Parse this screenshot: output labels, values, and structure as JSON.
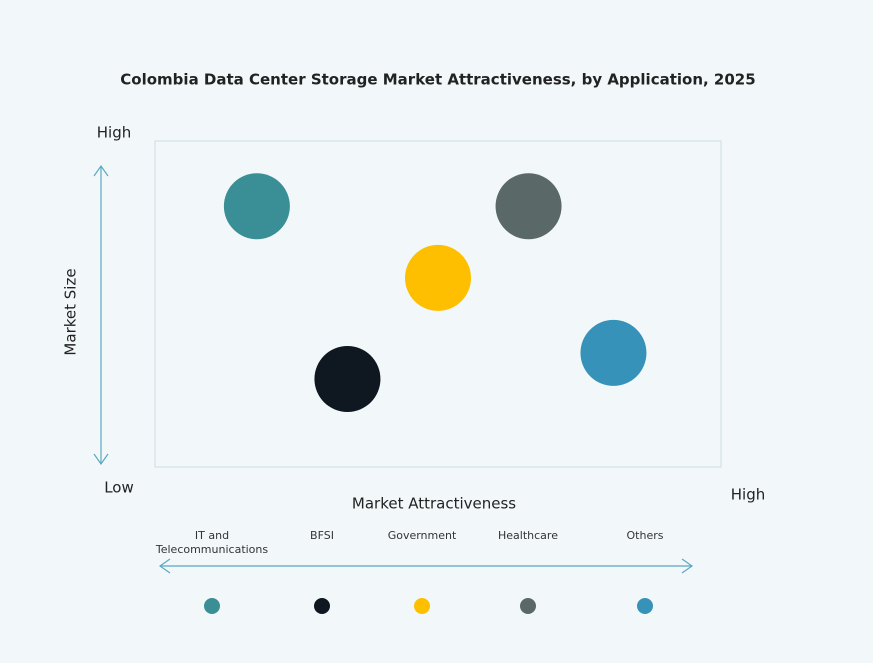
{
  "chart_data": {
    "type": "scatter",
    "title": "Colombia Data Center Storage Market Attractiveness,  by Application, 2025",
    "x_label": "Market Attractiveness",
    "y_label": "Market Size",
    "axis_labels": {
      "y_high": "High",
      "low": "Low",
      "x_high": "High"
    },
    "xlim": [
      0,
      100
    ],
    "ylim": [
      0,
      100
    ],
    "series": [
      {
        "name": "IT and Telecommunications",
        "color": "#3a8f96",
        "x": [
          18
        ],
        "values": [
          80
        ]
      },
      {
        "name": "BFSI",
        "color": "#0f1720",
        "x": [
          34
        ],
        "values": [
          27
        ]
      },
      {
        "name": "Government",
        "color": "#fdbf00",
        "x": [
          50
        ],
        "values": [
          58
        ]
      },
      {
        "name": "Healthcare",
        "color": "#5a6868",
        "x": [
          66
        ],
        "values": [
          80
        ]
      },
      {
        "name": "Others",
        "color": "#3692b8",
        "x": [
          81
        ],
        "values": [
          35
        ]
      }
    ]
  }
}
